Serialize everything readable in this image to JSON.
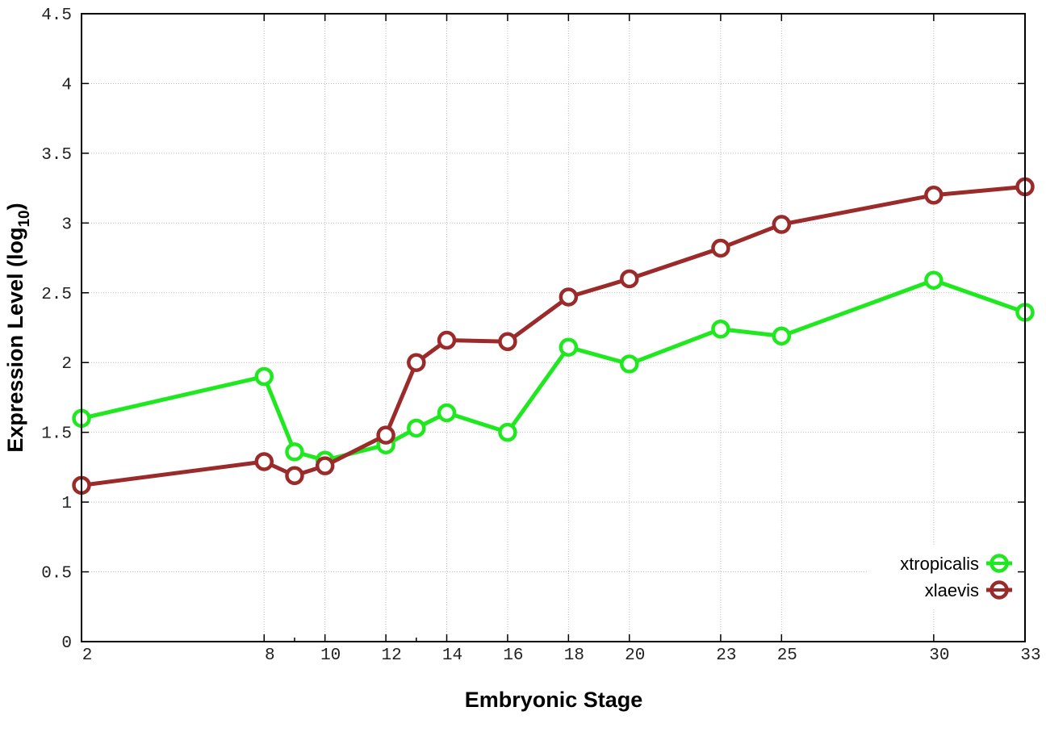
{
  "chart_data": {
    "type": "line",
    "title": "",
    "xlabel": "Embryonic Stage",
    "ylabel_main": "Expression Level (log",
    "ylabel_sub": "10",
    "ylabel_close": ")",
    "xlim": [
      2,
      33
    ],
    "ylim": [
      0,
      4.5
    ],
    "grid": true,
    "legend_position": "bottom-right",
    "x": [
      2,
      8,
      9,
      10,
      12,
      13,
      14,
      16,
      18,
      20,
      23,
      25,
      30,
      33
    ],
    "xtick_labels": [
      "2",
      "8",
      "10",
      "12",
      "14",
      "16",
      "18",
      "20",
      "23",
      "25",
      "30",
      "33"
    ],
    "xtick_values": [
      2,
      8,
      10,
      12,
      14,
      16,
      18,
      20,
      23,
      25,
      30,
      33
    ],
    "minor_xticks": [
      9,
      13
    ],
    "ytick_values": [
      0,
      0.5,
      1,
      1.5,
      2,
      2.5,
      3,
      3.5,
      4,
      4.5
    ],
    "ytick_labels": [
      "0",
      "0.5",
      "1",
      "1.5",
      "2",
      "2.5",
      "3",
      "3.5",
      "4",
      "4.5"
    ],
    "series": [
      {
        "name": "xtropicalis",
        "color": "#1ee81e",
        "values": [
          1.6,
          1.9,
          1.36,
          1.3,
          1.41,
          1.53,
          1.64,
          1.5,
          2.11,
          1.99,
          2.24,
          2.19,
          2.59,
          2.36
        ]
      },
      {
        "name": "xlaevis",
        "color": "#9b2a2a",
        "values": [
          1.12,
          1.29,
          1.19,
          1.26,
          1.48,
          2.0,
          2.16,
          2.15,
          2.47,
          2.6,
          2.82,
          2.99,
          3.2,
          3.26
        ]
      }
    ]
  }
}
